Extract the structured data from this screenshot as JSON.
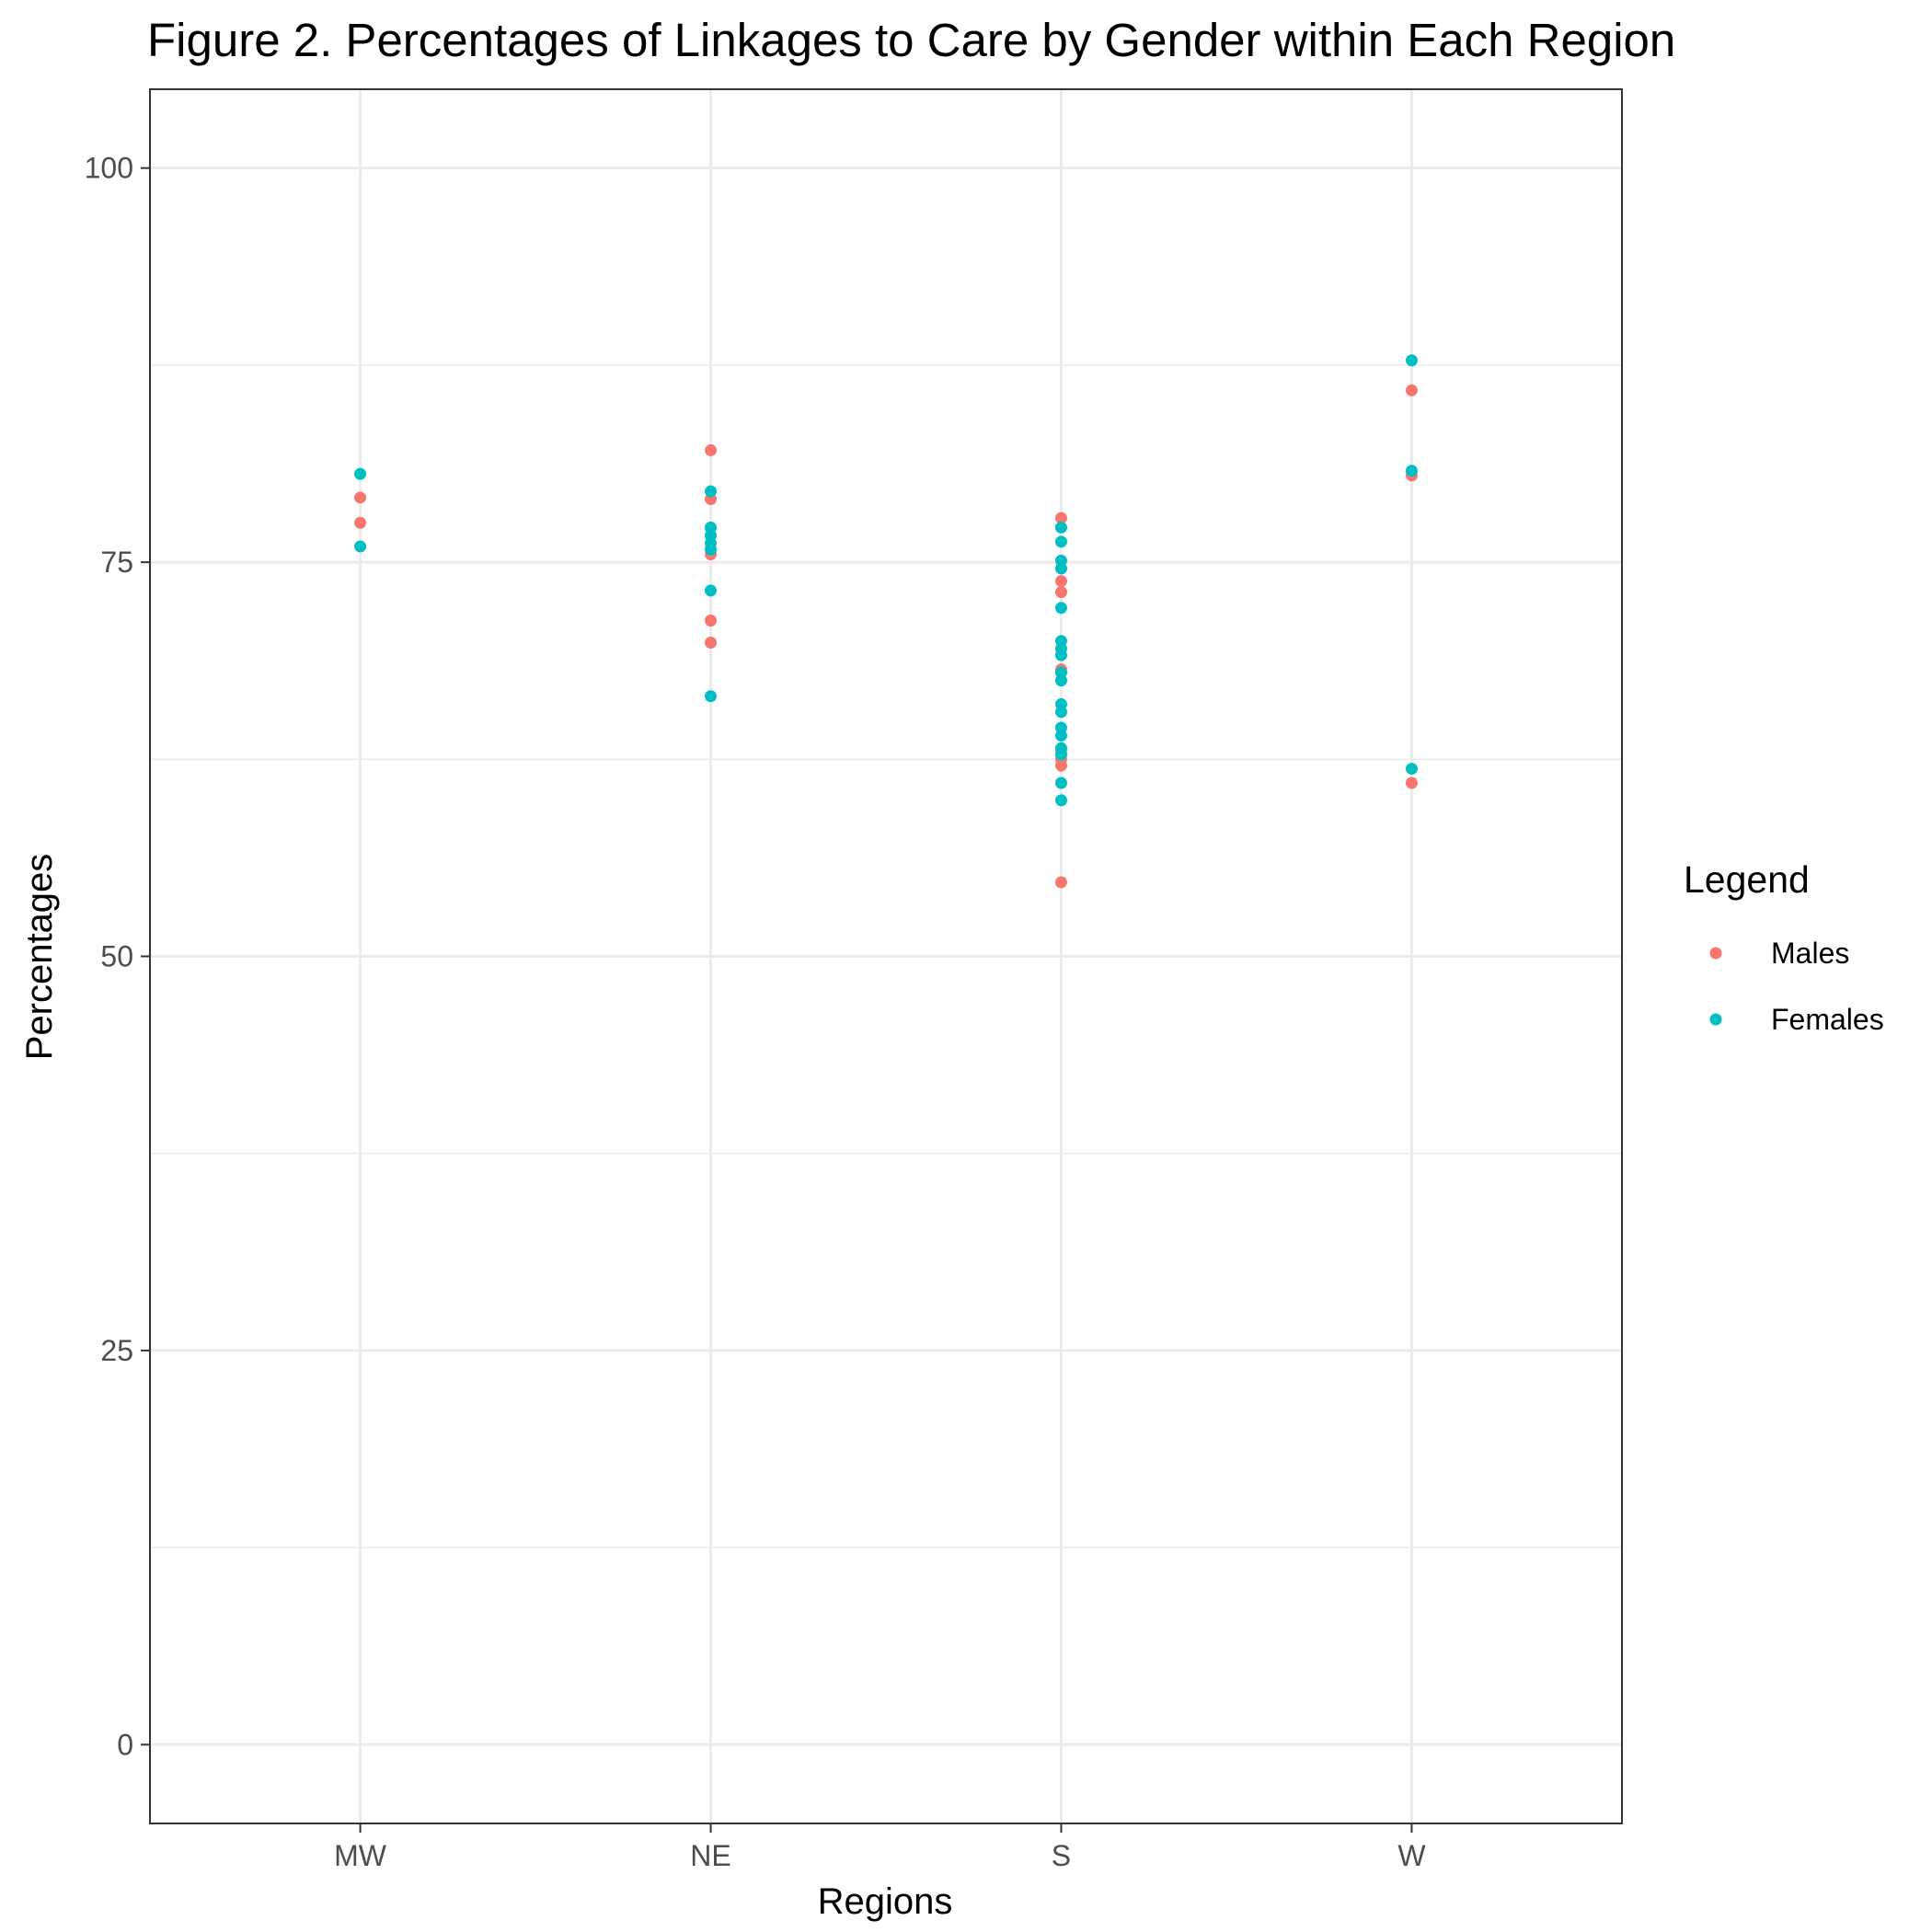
{
  "chart_data": {
    "type": "scatter",
    "title": "Figure 2. Percentages of Linkages to Care by Gender within Each Region",
    "xlabel": "Regions",
    "ylabel": "Percentages",
    "categories": [
      "MW",
      "NE",
      "S",
      "W"
    ],
    "ylim": [
      -5,
      105
    ],
    "y_ticks": [
      "0",
      "25",
      "50",
      "75",
      "100"
    ],
    "grid": true,
    "legend_title": "Legend",
    "legend_position": "right",
    "series": [
      {
        "name": "Males",
        "color": "#F8766D",
        "points": [
          {
            "x": "MW",
            "y": 79.1
          },
          {
            "x": "MW",
            "y": 77.5
          },
          {
            "x": "NE",
            "y": 82.1
          },
          {
            "x": "NE",
            "y": 79.0
          },
          {
            "x": "NE",
            "y": 75.5
          },
          {
            "x": "NE",
            "y": 71.3
          },
          {
            "x": "NE",
            "y": 69.9
          },
          {
            "x": "S",
            "y": 77.8
          },
          {
            "x": "S",
            "y": 73.8
          },
          {
            "x": "S",
            "y": 73.1
          },
          {
            "x": "S",
            "y": 68.2
          },
          {
            "x": "S",
            "y": 63.1
          },
          {
            "x": "S",
            "y": 62.5
          },
          {
            "x": "S",
            "y": 62.1
          },
          {
            "x": "S",
            "y": 54.7
          },
          {
            "x": "W",
            "y": 85.9
          },
          {
            "x": "W",
            "y": 80.5
          },
          {
            "x": "W",
            "y": 61.0
          }
        ]
      },
      {
        "name": "Females",
        "color": "#00BFC4",
        "points": [
          {
            "x": "MW",
            "y": 80.6
          },
          {
            "x": "MW",
            "y": 76.0
          },
          {
            "x": "NE",
            "y": 79.5
          },
          {
            "x": "NE",
            "y": 77.2
          },
          {
            "x": "NE",
            "y": 76.7
          },
          {
            "x": "NE",
            "y": 76.2
          },
          {
            "x": "NE",
            "y": 75.8
          },
          {
            "x": "NE",
            "y": 73.2
          },
          {
            "x": "NE",
            "y": 66.5
          },
          {
            "x": "S",
            "y": 77.2
          },
          {
            "x": "S",
            "y": 76.3
          },
          {
            "x": "S",
            "y": 75.1
          },
          {
            "x": "S",
            "y": 74.6
          },
          {
            "x": "S",
            "y": 72.1
          },
          {
            "x": "S",
            "y": 70.0
          },
          {
            "x": "S",
            "y": 69.5
          },
          {
            "x": "S",
            "y": 69.1
          },
          {
            "x": "S",
            "y": 68.0
          },
          {
            "x": "S",
            "y": 67.5
          },
          {
            "x": "S",
            "y": 66.0
          },
          {
            "x": "S",
            "y": 65.5
          },
          {
            "x": "S",
            "y": 64.5
          },
          {
            "x": "S",
            "y": 64.0
          },
          {
            "x": "S",
            "y": 63.2
          },
          {
            "x": "S",
            "y": 62.8
          },
          {
            "x": "S",
            "y": 61.0
          },
          {
            "x": "S",
            "y": 59.9
          },
          {
            "x": "W",
            "y": 87.8
          },
          {
            "x": "W",
            "y": 80.8
          },
          {
            "x": "W",
            "y": 61.9
          }
        ]
      }
    ]
  }
}
